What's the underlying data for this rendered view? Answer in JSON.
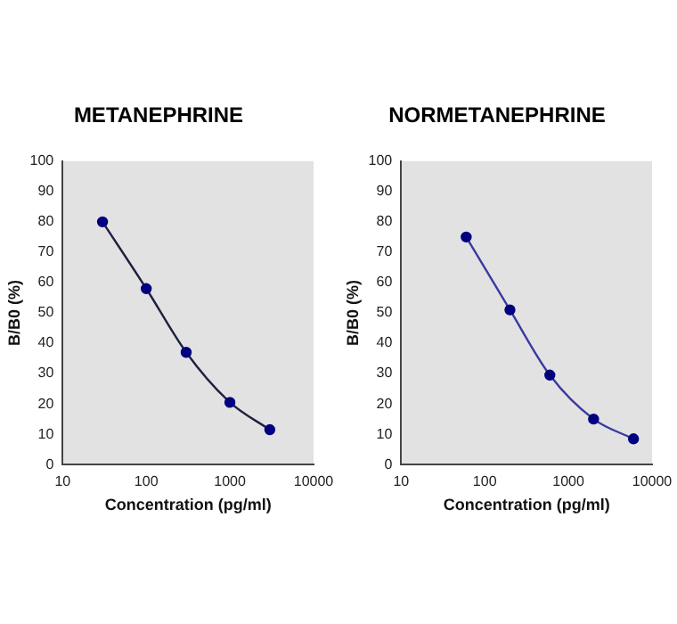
{
  "chart_data": [
    {
      "type": "line",
      "title": "METANEPHRINE",
      "xlabel": "Concentration (pg/ml)",
      "ylabel": "B/B0 (%)",
      "log": "x",
      "grid": false,
      "marker": "circle",
      "line_style": "solid",
      "x": [
        30,
        100,
        300,
        1000,
        3000
      ],
      "series": [
        {
          "color": "#202040",
          "values": [
            80,
            58,
            37,
            20.5,
            11.5
          ]
        }
      ],
      "xlim": [
        10,
        10000
      ],
      "xticks": [
        10,
        100,
        1000,
        10000
      ],
      "ylim": [
        0,
        100
      ],
      "yticks": [
        0,
        10,
        20,
        30,
        40,
        50,
        60,
        70,
        80,
        90,
        100
      ]
    },
    {
      "type": "line",
      "title": "NORMETANEPHRINE",
      "xlabel": "Concentration (pg/ml)",
      "ylabel": "B/B0 (%)",
      "log": "x",
      "grid": false,
      "marker": "circle",
      "line_style": "solid",
      "x": [
        60,
        200,
        600,
        2000,
        6000
      ],
      "series": [
        {
          "color": "#3a3aa0",
          "values": [
            75,
            51,
            29.5,
            15,
            8.5
          ]
        }
      ],
      "xlim": [
        10,
        10000
      ],
      "xticks": [
        10,
        100,
        1000,
        10000
      ],
      "ylim": [
        0,
        100
      ],
      "yticks": [
        0,
        10,
        20,
        30,
        40,
        50,
        60,
        70,
        80,
        90,
        100
      ]
    }
  ]
}
